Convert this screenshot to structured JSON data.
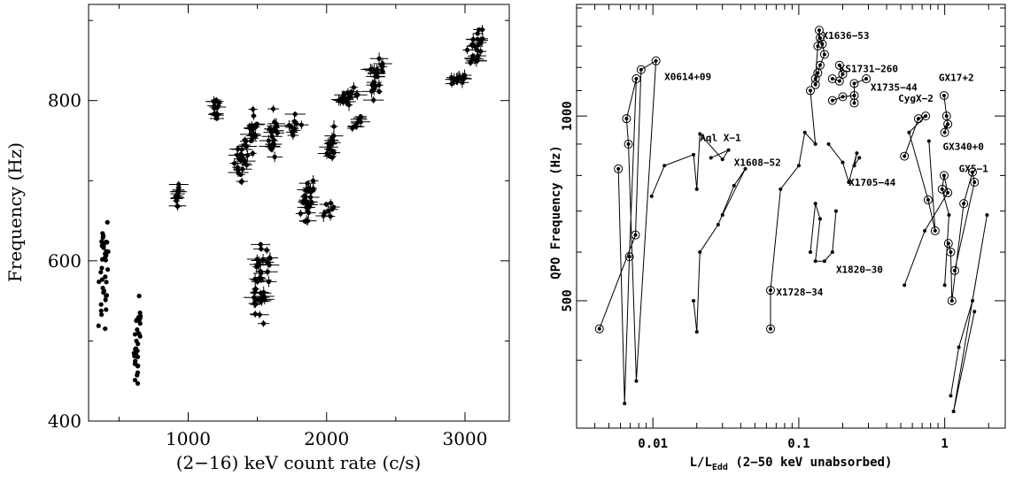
{
  "chart_data": [
    {
      "type": "scatter",
      "xlabel": "(2−16) keV count rate (c/s)",
      "ylabel": "Frequency (Hz)",
      "xlim": [
        280,
        3320
      ],
      "ylim": [
        400,
        920
      ],
      "xticks": [
        1000,
        2000,
        3000
      ],
      "xtick_labels": [
        "1000",
        "2000",
        "3000"
      ],
      "yticks": [
        400,
        600,
        800
      ],
      "ytick_labels": [
        "400",
        "600",
        "800"
      ],
      "grid": false,
      "clusters": [
        {
          "x": [
            350,
            430
          ],
          "y": [
            510,
            680
          ],
          "n": 38,
          "err": false
        },
        {
          "x": [
            600,
            660
          ],
          "y": [
            435,
            560
          ],
          "n": 34,
          "err": false
        },
        {
          "x": [
            905,
            935
          ],
          "y": [
            665,
            700
          ],
          "n": 14,
          "err": true
        },
        {
          "x": [
            1175,
            1225
          ],
          "y": [
            770,
            812
          ],
          "n": 12,
          "err": true
        },
        {
          "x": [
            1330,
            1440
          ],
          "y": [
            690,
            760
          ],
          "n": 24,
          "err": true
        },
        {
          "x": [
            1430,
            1510
          ],
          "y": [
            730,
            795
          ],
          "n": 16,
          "err": true
        },
        {
          "x": [
            1460,
            1600
          ],
          "y": [
            520,
            630
          ],
          "n": 40,
          "err": true
        },
        {
          "x": [
            1570,
            1650
          ],
          "y": [
            715,
            795
          ],
          "n": 20,
          "err": true
        },
        {
          "x": [
            1720,
            1830
          ],
          "y": [
            755,
            785
          ],
          "n": 10,
          "err": true
        },
        {
          "x": [
            1800,
            1910
          ],
          "y": [
            645,
            705
          ],
          "n": 30,
          "err": true
        },
        {
          "x": [
            1960,
            2060
          ],
          "y": [
            650,
            680
          ],
          "n": 8,
          "err": true
        },
        {
          "x": [
            1990,
            2080
          ],
          "y": [
            720,
            775
          ],
          "n": 16,
          "err": true
        },
        {
          "x": [
            2070,
            2230
          ],
          "y": [
            790,
            820
          ],
          "n": 20,
          "err": true
        },
        {
          "x": [
            2180,
            2260
          ],
          "y": [
            765,
            780
          ],
          "n": 8,
          "err": true
        },
        {
          "x": [
            2300,
            2420
          ],
          "y": [
            800,
            860
          ],
          "n": 22,
          "err": true
        },
        {
          "x": [
            2880,
            3030
          ],
          "y": [
            820,
            835
          ],
          "n": 14,
          "err": true
        },
        {
          "x": [
            3000,
            3150
          ],
          "y": [
            835,
            895
          ],
          "n": 24,
          "err": true
        }
      ]
    },
    {
      "type": "line",
      "xlabel": "L/L",
      "xlabel_sub": "Edd",
      "xlabel_suffix": " (2−50 keV unabsorbed)",
      "ylabel": "QPO Frequency (Hz)",
      "xscale": "log",
      "yscale": "log",
      "xlim": [
        0.003,
        2.6
      ],
      "ylim": [
        310,
        1520
      ],
      "xticks": [
        0.01,
        0.1,
        1
      ],
      "xtick_labels": [
        "0.01",
        "0.1",
        "1"
      ],
      "yticks": [
        500,
        1000
      ],
      "ytick_labels": [
        "500",
        "1000"
      ],
      "grid": false,
      "series": [
        {
          "name": "X0614+09",
          "label_at": [
            0.012,
            1145
          ],
          "points": [
            [
              0.0043,
              450,
              1
            ],
            [
              0.0076,
              640,
              1
            ],
            [
              0.0083,
              1190,
              1
            ],
            [
              0.0105,
              1230,
              1
            ],
            [
              0.0077,
              370,
              0
            ],
            [
              0.0068,
              900,
              1
            ],
            [
              0.0066,
              990,
              1
            ],
            [
              0.0077,
              1150,
              1
            ],
            [
              0.0069,
              590,
              1
            ],
            [
              0.0064,
              340,
              0
            ],
            [
              0.0058,
              820,
              1
            ]
          ]
        },
        {
          "name": "Aql X−1",
          "label_at": [
            0.021,
            910
          ],
          "points": [
            [
              0.0098,
              740,
              0
            ],
            [
              0.012,
              830,
              0
            ],
            [
              0.019,
              865,
              0
            ],
            [
              0.02,
              760,
              0
            ],
            [
              0.021,
              935,
              0
            ],
            [
              0.03,
              850,
              0
            ],
            [
              0.033,
              880,
              0
            ],
            [
              0.025,
              855,
              0
            ]
          ]
        },
        {
          "name": "X1608−52",
          "label_at": [
            0.036,
            830
          ],
          "points": [
            [
              0.019,
              500,
              0
            ],
            [
              0.02,
              445,
              0
            ],
            [
              0.021,
              600,
              0
            ],
            [
              0.028,
              665,
              0
            ],
            [
              0.036,
              770,
              0
            ],
            [
              0.043,
              820,
              0
            ],
            [
              0.03,
              690,
              0
            ]
          ]
        },
        {
          "name": "X1728−34",
          "label_at": [
            0.07,
            510
          ],
          "points": [
            [
              0.064,
              450,
              1
            ],
            [
              0.064,
              520,
              1
            ],
            [
              0.075,
              760,
              0
            ],
            [
              0.1,
              830,
              0
            ],
            [
              0.11,
              940,
              0
            ],
            [
              0.13,
              900,
              0
            ],
            [
              0.12,
              1100,
              1
            ]
          ]
        },
        {
          "name": "X1636−53",
          "label_at": [
            0.145,
            1335
          ],
          "points": [
            [
              0.13,
              1125,
              1
            ],
            [
              0.135,
              1175,
              1
            ],
            [
              0.14,
              1210,
              1
            ],
            [
              0.15,
              1260,
              1
            ],
            [
              0.145,
              1310,
              1
            ],
            [
              0.14,
              1340,
              1
            ],
            [
              0.138,
              1380,
              1
            ],
            [
              0.135,
              1300,
              1
            ],
            [
              0.13,
              1150,
              1
            ]
          ]
        },
        {
          "name": "KS1731−260",
          "label_at": [
            0.19,
            1180
          ],
          "points": [
            [
              0.17,
              1150,
              1
            ],
            [
              0.19,
              1140,
              1
            ],
            [
              0.2,
              1170,
              1
            ],
            [
              0.19,
              1210,
              1
            ]
          ]
        },
        {
          "name": "X1735−44",
          "label_at": [
            0.31,
            1100
          ],
          "points": [
            [
              0.17,
              1060,
              1
            ],
            [
              0.2,
              1075,
              1
            ],
            [
              0.24,
              1080,
              1
            ],
            [
              0.24,
              1050,
              1
            ],
            [
              0.24,
              1130,
              1
            ],
            [
              0.29,
              1150,
              1
            ]
          ]
        },
        {
          "name": "X1705−44",
          "label_at": [
            0.22,
            770
          ],
          "points": [
            [
              0.16,
              900,
              0
            ],
            [
              0.2,
              840,
              0
            ],
            [
              0.22,
              780,
              0
            ],
            [
              0.25,
              870,
              0
            ],
            [
              0.24,
              830,
              0
            ],
            [
              0.26,
              855,
              0
            ]
          ]
        },
        {
          "name": "X1820−30",
          "label_at": [
            0.18,
            555
          ],
          "points": [
            [
              0.12,
              600,
              0
            ],
            [
              0.13,
              720,
              0
            ],
            [
              0.14,
              680,
              0
            ],
            [
              0.13,
              580,
              0
            ],
            [
              0.15,
              580,
              0
            ],
            [
              0.17,
              600,
              0
            ],
            [
              0.18,
              700,
              0
            ]
          ]
        },
        {
          "name": "CygX−2",
          "label_at": [
            0.48,
            1055
          ],
          "points": [
            [
              0.53,
              860,
              1
            ],
            [
              0.66,
              990,
              1
            ],
            [
              0.74,
              1000,
              1
            ],
            [
              0.57,
              940,
              0
            ],
            [
              0.77,
              730,
              1
            ],
            [
              0.86,
              650,
              1
            ],
            [
              0.78,
              910,
              0
            ]
          ]
        },
        {
          "name": "GX17+2",
          "label_at": [
            0.91,
            1140
          ],
          "points": [
            [
              0.99,
              1080,
              1
            ],
            [
              1.03,
              1000,
              1
            ],
            [
              1.05,
              970,
              1
            ],
            [
              1.02,
              960,
              0
            ],
            [
              1.0,
              940,
              1
            ]
          ]
        },
        {
          "name": "GX340+0",
          "label_at": [
            0.97,
            880
          ],
          "points": [
            [
              0.53,
              530,
              0
            ],
            [
              0.73,
              650,
              0
            ],
            [
              1.05,
              750,
              1
            ],
            [
              0.99,
              800,
              1
            ],
            [
              0.96,
              760,
              1
            ],
            [
              1.07,
              690,
              0
            ],
            [
              1.0,
              530,
              0
            ]
          ]
        },
        {
          "name": "GX5−1",
          "label_at": [
            1.25,
            810
          ],
          "points": [
            [
              1.06,
              620,
              1
            ],
            [
              1.1,
              600,
              1
            ],
            [
              1.12,
              500,
              1
            ],
            [
              1.35,
              720,
              1
            ],
            [
              1.55,
              810,
              1
            ],
            [
              1.6,
              780,
              1
            ],
            [
              1.17,
              560,
              1
            ]
          ]
        },
        {
          "name": "",
          "label_at": null,
          "points": [
            [
              1.1,
              350,
              0
            ],
            [
              1.25,
              420,
              0
            ],
            [
              1.55,
              500,
              0
            ],
            [
              1.95,
              690,
              0
            ],
            [
              1.15,
              330,
              0
            ],
            [
              1.6,
              480,
              0
            ]
          ]
        }
      ]
    }
  ]
}
